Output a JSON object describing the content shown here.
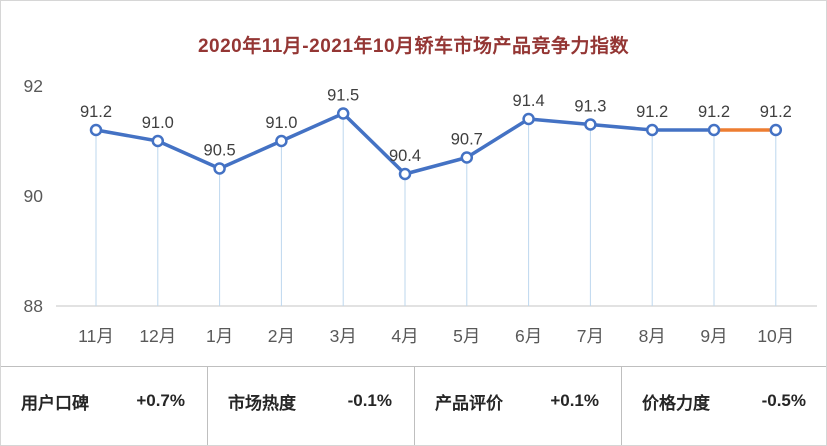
{
  "title": "2020年11月-2021年10月轿车市场产品竞争力指数",
  "chart_data": {
    "type": "line",
    "title": "2020年11月-2021年10月轿车市场产品竞争力指数",
    "categories": [
      "11月",
      "12月",
      "1月",
      "2月",
      "3月",
      "4月",
      "5月",
      "6月",
      "7月",
      "8月",
      "9月",
      "10月"
    ],
    "values": [
      91.2,
      91.0,
      90.5,
      91.0,
      91.5,
      90.4,
      90.7,
      91.4,
      91.3,
      91.2,
      91.2,
      91.2
    ],
    "labels": [
      "91.2",
      "91.0",
      "90.5",
      "91.0",
      "91.5",
      "90.4",
      "90.7",
      "91.4",
      "91.3",
      "91.2",
      "91.2",
      "91.2"
    ],
    "ylim": [
      88,
      92
    ],
    "yticks": [
      88,
      90,
      92
    ],
    "xlabel": "",
    "ylabel": "",
    "grid": "off",
    "legend": "none",
    "line_color": "#4472C4",
    "last_segment_color": "#ED7D31",
    "drop_line_color": "#BDD7EE",
    "axis_color": "#D9D9D9",
    "marker_fill": "#FFFFFF"
  },
  "footer": {
    "items": [
      {
        "label": "用户口碑",
        "value": "+0.7%"
      },
      {
        "label": "市场热度",
        "value": "-0.1%"
      },
      {
        "label": "产品评价",
        "value": "+0.1%"
      },
      {
        "label": "价格力度",
        "value": "-0.5%"
      }
    ]
  }
}
